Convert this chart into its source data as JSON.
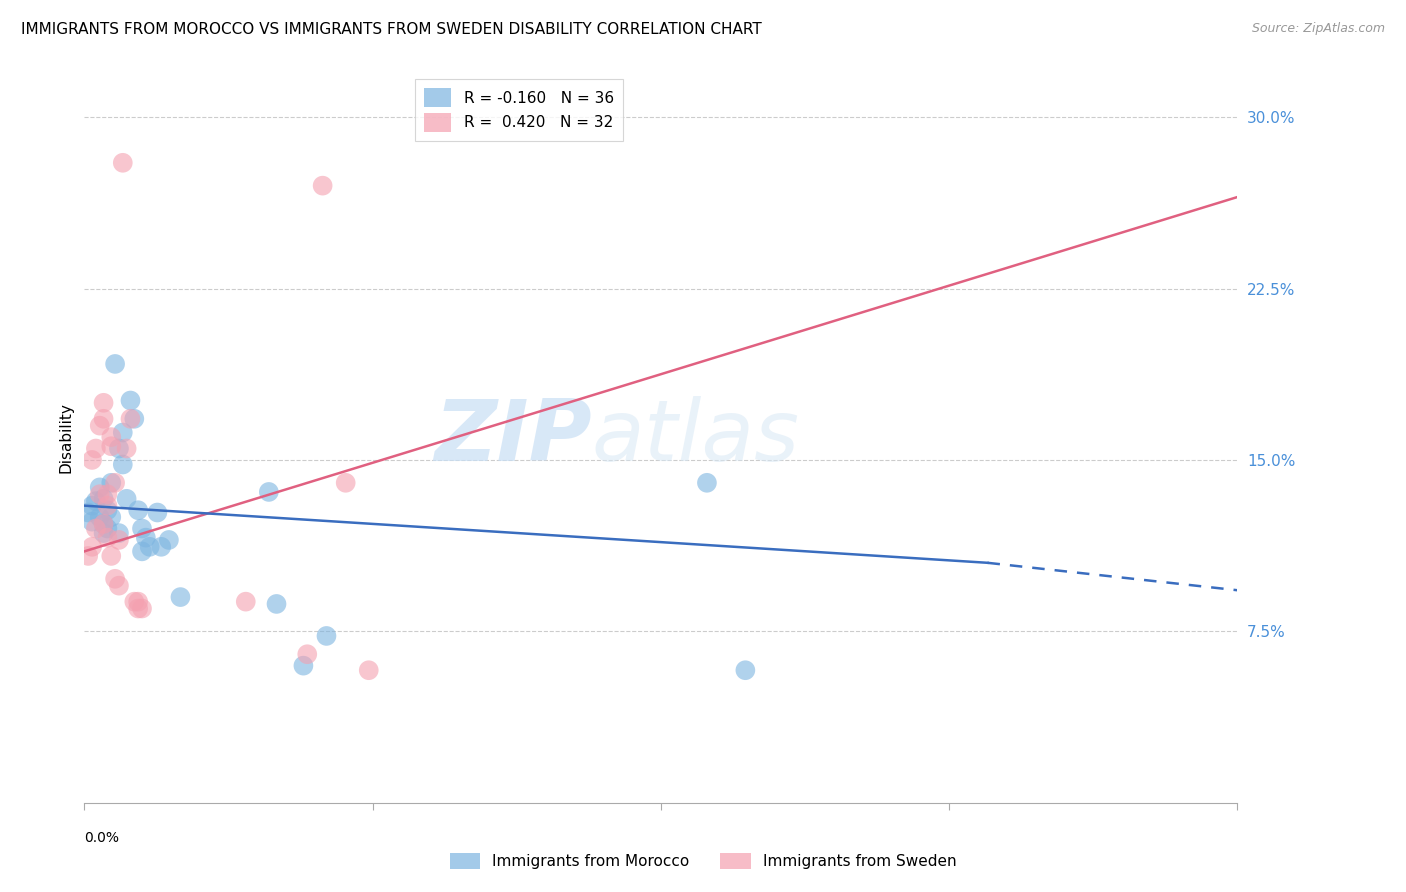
{
  "title": "IMMIGRANTS FROM MOROCCO VS IMMIGRANTS FROM SWEDEN DISABILITY CORRELATION CHART",
  "source": "Source: ZipAtlas.com",
  "ylabel": "Disability",
  "ytick_labels": [
    "30.0%",
    "22.5%",
    "15.0%",
    "7.5%"
  ],
  "ytick_values": [
    0.3,
    0.225,
    0.15,
    0.075
  ],
  "xlim": [
    0.0,
    0.3
  ],
  "ylim": [
    0.0,
    0.32
  ],
  "watermark_text": "ZIPatlas",
  "morocco_color": "#7cb4e0",
  "sweden_color": "#f4a0b0",
  "morocco_scatter": [
    [
      0.001,
      0.127
    ],
    [
      0.002,
      0.13
    ],
    [
      0.002,
      0.123
    ],
    [
      0.003,
      0.132
    ],
    [
      0.004,
      0.138
    ],
    [
      0.004,
      0.125
    ],
    [
      0.005,
      0.133
    ],
    [
      0.005,
      0.122
    ],
    [
      0.005,
      0.118
    ],
    [
      0.006,
      0.128
    ],
    [
      0.006,
      0.12
    ],
    [
      0.007,
      0.14
    ],
    [
      0.007,
      0.125
    ],
    [
      0.008,
      0.192
    ],
    [
      0.009,
      0.155
    ],
    [
      0.009,
      0.118
    ],
    [
      0.01,
      0.162
    ],
    [
      0.01,
      0.148
    ],
    [
      0.011,
      0.133
    ],
    [
      0.012,
      0.176
    ],
    [
      0.013,
      0.168
    ],
    [
      0.014,
      0.128
    ],
    [
      0.015,
      0.12
    ],
    [
      0.015,
      0.11
    ],
    [
      0.016,
      0.116
    ],
    [
      0.017,
      0.112
    ],
    [
      0.019,
      0.127
    ],
    [
      0.02,
      0.112
    ],
    [
      0.022,
      0.115
    ],
    [
      0.025,
      0.09
    ],
    [
      0.048,
      0.136
    ],
    [
      0.05,
      0.087
    ],
    [
      0.057,
      0.06
    ],
    [
      0.063,
      0.073
    ],
    [
      0.162,
      0.14
    ],
    [
      0.172,
      0.058
    ]
  ],
  "sweden_scatter": [
    [
      0.001,
      0.108
    ],
    [
      0.002,
      0.112
    ],
    [
      0.002,
      0.15
    ],
    [
      0.003,
      0.155
    ],
    [
      0.003,
      0.12
    ],
    [
      0.004,
      0.165
    ],
    [
      0.004,
      0.135
    ],
    [
      0.005,
      0.122
    ],
    [
      0.005,
      0.175
    ],
    [
      0.005,
      0.168
    ],
    [
      0.006,
      0.116
    ],
    [
      0.006,
      0.135
    ],
    [
      0.006,
      0.13
    ],
    [
      0.007,
      0.108
    ],
    [
      0.007,
      0.16
    ],
    [
      0.007,
      0.156
    ],
    [
      0.008,
      0.098
    ],
    [
      0.008,
      0.14
    ],
    [
      0.009,
      0.095
    ],
    [
      0.009,
      0.115
    ],
    [
      0.01,
      0.28
    ],
    [
      0.011,
      0.155
    ],
    [
      0.012,
      0.168
    ],
    [
      0.013,
      0.088
    ],
    [
      0.014,
      0.085
    ],
    [
      0.014,
      0.088
    ],
    [
      0.015,
      0.085
    ],
    [
      0.042,
      0.088
    ],
    [
      0.058,
      0.065
    ],
    [
      0.062,
      0.27
    ],
    [
      0.068,
      0.14
    ],
    [
      0.074,
      0.058
    ]
  ],
  "morocco_line_solid": {
    "x": [
      0.0,
      0.235
    ],
    "y": [
      0.13,
      0.105
    ]
  },
  "morocco_line_dashed": {
    "x": [
      0.235,
      0.3
    ],
    "y": [
      0.105,
      0.093
    ]
  },
  "sweden_line": {
    "x": [
      0.0,
      0.3
    ],
    "y": [
      0.11,
      0.265
    ]
  },
  "background_color": "#ffffff",
  "grid_color": "#cccccc",
  "title_fontsize": 11,
  "tick_color": "#4a90d9",
  "morocco_line_color": "#3a6dbf",
  "sweden_line_color": "#e06080"
}
